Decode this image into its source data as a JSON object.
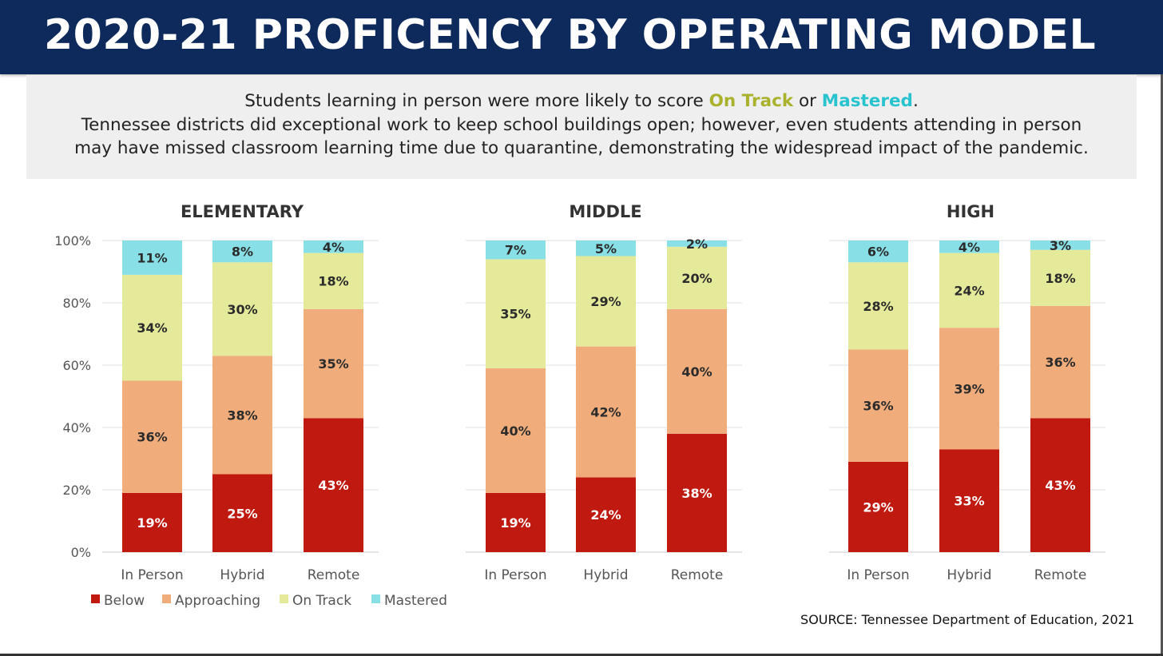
{
  "header": {
    "title": "2020-21 PROFICENCY BY OPERATING MODEL"
  },
  "subtitle": {
    "line1_prefix": "Students learning in person were more likely to score ",
    "line1_ontrack": "On Track",
    "line1_or": " or ",
    "line1_mastered": "Mastered",
    "line1_suffix": ".",
    "line2": "Tennessee districts did exceptional work to keep school buildings open; however, even students attending in person",
    "line3": "may have missed classroom learning time due to quarantine, demonstrating the widespread impact of the pandemic."
  },
  "source": "SOURCE: Tennessee Department of Education, 2021",
  "colors": {
    "Below": "#c0190f",
    "Approaching": "#f0ad7b",
    "On Track": "#e5e99a",
    "Mastered": "#88dfe6",
    "ontrack_text": "#aab22d",
    "mastered_text": "#29c3cf",
    "title_bar": "#0e2a5c"
  },
  "chart_data": {
    "type": "bar",
    "stacked": true,
    "ylim": [
      0,
      100
    ],
    "y_ticks": [
      0,
      20,
      40,
      60,
      80,
      100
    ],
    "y_tick_labels": [
      "0%",
      "20%",
      "40%",
      "60%",
      "80%",
      "100%"
    ],
    "grid": true,
    "legend_position": "bottom-left",
    "legend": [
      "Below",
      "Approaching",
      "On Track",
      "Mastered"
    ],
    "panels": [
      {
        "title": "ELEMENTARY",
        "categories": [
          "In Person",
          "Hybrid",
          "Remote"
        ],
        "series": [
          {
            "name": "Below",
            "values": [
              19,
              25,
              43
            ]
          },
          {
            "name": "Approaching",
            "values": [
              36,
              38,
              35
            ]
          },
          {
            "name": "On Track",
            "values": [
              34,
              30,
              18
            ]
          },
          {
            "name": "Mastered",
            "values": [
              11,
              8,
              4
            ]
          }
        ]
      },
      {
        "title": "MIDDLE",
        "categories": [
          "In Person",
          "Hybrid",
          "Remote"
        ],
        "series": [
          {
            "name": "Below",
            "values": [
              19,
              24,
              38
            ]
          },
          {
            "name": "Approaching",
            "values": [
              40,
              42,
              40
            ]
          },
          {
            "name": "On Track",
            "values": [
              35,
              29,
              20
            ]
          },
          {
            "name": "Mastered",
            "values": [
              7,
              5,
              2
            ]
          }
        ]
      },
      {
        "title": "HIGH",
        "categories": [
          "In Person",
          "Hybrid",
          "Remote"
        ],
        "series": [
          {
            "name": "Below",
            "values": [
              29,
              33,
              43
            ]
          },
          {
            "name": "Approaching",
            "values": [
              36,
              39,
              36
            ]
          },
          {
            "name": "On Track",
            "values": [
              28,
              24,
              18
            ]
          },
          {
            "name": "Mastered",
            "values": [
              6,
              4,
              3
            ]
          }
        ]
      }
    ]
  }
}
